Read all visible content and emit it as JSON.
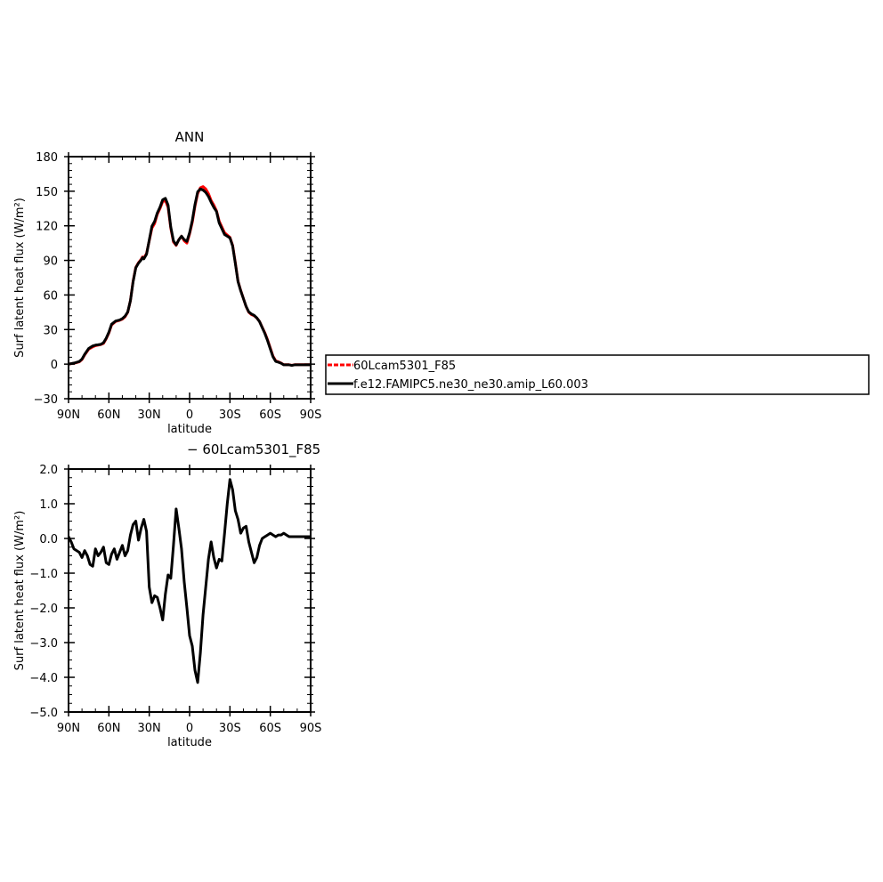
{
  "chart_data": [
    {
      "type": "line",
      "title": "ANN",
      "xlabel": "latitude",
      "ylabel": "Surf latent heat flux (W/m²)",
      "ylim": [
        -30,
        180
      ],
      "yticks": [
        -30,
        0,
        30,
        60,
        90,
        120,
        150,
        180
      ],
      "ytick_labels": [
        "−30",
        "0",
        "30",
        "60",
        "90",
        "120",
        "150",
        "180"
      ],
      "xlim": [
        90,
        -90
      ],
      "xticks": [
        90,
        60,
        30,
        0,
        -30,
        -60,
        -90
      ],
      "xtick_labels": [
        "90N",
        "60N",
        "30N",
        "0",
        "30S",
        "60S",
        "90S"
      ],
      "legend_position": "right",
      "series": [
        {
          "name": "60Lcam5301_F85",
          "color": "#ff0000",
          "x": [
            90,
            85,
            82,
            80,
            78,
            75,
            72,
            70,
            68,
            66,
            64,
            62,
            60,
            58,
            55,
            52,
            50,
            48,
            46,
            44,
            42,
            40,
            38,
            36,
            35,
            34,
            32,
            30,
            28,
            26,
            24,
            22,
            20,
            18,
            16,
            14,
            12,
            10,
            8,
            6,
            4,
            2,
            0,
            -2,
            -4,
            -6,
            -8,
            -10,
            -12,
            -14,
            -16,
            -18,
            -20,
            -22,
            -24,
            -26,
            -28,
            -30,
            -32,
            -34,
            -36,
            -38,
            -40,
            -42,
            -44,
            -46,
            -48,
            -50,
            -52,
            -54,
            -56,
            -58,
            -60,
            -62,
            -64,
            -66,
            -68,
            -70,
            -72,
            -74,
            -76,
            -78,
            -80,
            -82,
            -85,
            -90
          ],
          "values": [
            0,
            1,
            2,
            4,
            8,
            13,
            15,
            16,
            16.5,
            17,
            18,
            22,
            27,
            34,
            37,
            38,
            39,
            41,
            45,
            55,
            72,
            84,
            88,
            91,
            93,
            92,
            96,
            107,
            118,
            122,
            130,
            135,
            141,
            142,
            136,
            118,
            106,
            103,
            108,
            111,
            107,
            105,
            113,
            123,
            137,
            148,
            153,
            154,
            152,
            148,
            142,
            138,
            133,
            124,
            119,
            114,
            112,
            110,
            103,
            88,
            72,
            64,
            57,
            50,
            45,
            43,
            42,
            40,
            37,
            32,
            27,
            21,
            14,
            7,
            3,
            2,
            1,
            -0.5,
            -0.5,
            -0.5,
            -1,
            -0.5,
            -0.5,
            -0.5,
            -0.5,
            -0.5
          ]
        },
        {
          "name": "f.e12.FAMIPC5.ne30_ne30.amip_L60.003",
          "color": "#000000",
          "x": [
            90,
            85,
            82,
            80,
            78,
            75,
            72,
            70,
            68,
            66,
            64,
            62,
            60,
            58,
            55,
            52,
            50,
            48,
            46,
            44,
            42,
            40,
            38,
            36,
            35,
            34,
            32,
            30,
            28,
            26,
            24,
            22,
            20,
            18,
            16,
            14,
            12,
            10,
            8,
            6,
            4,
            2,
            0,
            -2,
            -4,
            -6,
            -8,
            -10,
            -12,
            -14,
            -16,
            -18,
            -20,
            -22,
            -24,
            -26,
            -28,
            -30,
            -32,
            -34,
            -36,
            -38,
            -40,
            -42,
            -44,
            -46,
            -48,
            -50,
            -52,
            -54,
            -56,
            -58,
            -60,
            -62,
            -64,
            -66,
            -68,
            -70,
            -72,
            -74,
            -76,
            -78,
            -80,
            -82,
            -85,
            -90
          ],
          "values": [
            0,
            1.2,
            2.3,
            4.4,
            8.5,
            13.6,
            15.8,
            16.5,
            16.8,
            17.2,
            18.6,
            22.5,
            27.7,
            34.6,
            37.4,
            38.3,
            39.5,
            41.6,
            45.2,
            55,
            71.5,
            83.6,
            87.6,
            90.4,
            92.4,
            91.3,
            95.4,
            107.6,
            119.7,
            123.8,
            131.2,
            136.2,
            142.6,
            143.9,
            138,
            119,
            107,
            103.5,
            107.8,
            111,
            108,
            106.5,
            114,
            124.5,
            138.5,
            149.5,
            152,
            151,
            149,
            145.5,
            140.5,
            136,
            132.5,
            122.5,
            117.5,
            112.5,
            111,
            109.5,
            102.5,
            87.4,
            71.6,
            63.7,
            56.9,
            50.1,
            45.3,
            43.5,
            42.3,
            40.1,
            36.9,
            31.7,
            26.5,
            20.3,
            13.2,
            6.4,
            2.4,
            1.7,
            0.8,
            -0.6,
            -0.6,
            -0.6,
            -1.1,
            -0.6,
            -0.6,
            -0.6,
            -0.6,
            -0.6
          ]
        }
      ]
    },
    {
      "type": "line",
      "title": "− 60Lcam5301_F85",
      "xlabel": "latitude",
      "ylabel": "Surf latent heat flux (W/m²)",
      "ylim": [
        -5,
        2
      ],
      "yticks": [
        -5,
        -4,
        -3,
        -2,
        -1,
        0,
        1,
        2
      ],
      "ytick_labels": [
        "−5.0",
        "−4.0",
        "−3.0",
        "−2.0",
        "−1.0",
        "0.0",
        "1.0",
        "2.0"
      ],
      "xlim": [
        90,
        -90
      ],
      "xticks": [
        90,
        60,
        30,
        0,
        -30,
        -60,
        -90
      ],
      "xtick_labels": [
        "90N",
        "60N",
        "30N",
        "0",
        "30S",
        "60S",
        "90S"
      ],
      "series": [
        {
          "color": "#000000",
          "x": [
            90,
            88,
            86,
            84,
            82,
            80,
            78,
            76,
            74,
            72,
            70,
            68,
            66,
            64,
            62,
            60,
            58,
            56,
            54,
            52,
            50,
            48,
            46,
            44,
            42,
            40,
            38,
            36,
            34,
            32,
            30,
            28,
            26,
            24,
            22,
            20,
            18,
            16,
            14,
            12,
            10,
            8,
            6,
            4,
            2,
            0,
            -2,
            -4,
            -6,
            -8,
            -10,
            -12,
            -14,
            -16,
            -18,
            -20,
            -22,
            -24,
            -26,
            -28,
            -30,
            -32,
            -34,
            -36,
            -38,
            -40,
            -42,
            -44,
            -46,
            -48,
            -50,
            -52,
            -54,
            -56,
            -58,
            -60,
            -62,
            -64,
            -66,
            -68,
            -70,
            -72,
            -74,
            -76,
            -78,
            -80,
            -82,
            -84,
            -86,
            -88,
            -90
          ],
          "values": [
            0.05,
            -0.1,
            -0.3,
            -0.35,
            -0.4,
            -0.55,
            -0.35,
            -0.5,
            -0.75,
            -0.8,
            -0.3,
            -0.5,
            -0.4,
            -0.25,
            -0.7,
            -0.75,
            -0.45,
            -0.3,
            -0.6,
            -0.4,
            -0.2,
            -0.5,
            -0.35,
            0.1,
            0.4,
            0.5,
            -0.05,
            0.3,
            0.55,
            0.2,
            -1.4,
            -1.85,
            -1.65,
            -1.7,
            -2.0,
            -2.35,
            -1.6,
            -1.05,
            -1.15,
            -0.2,
            0.85,
            0.3,
            -0.3,
            -1.25,
            -2.0,
            -2.8,
            -3.1,
            -3.8,
            -4.15,
            -3.3,
            -2.2,
            -1.4,
            -0.6,
            -0.1,
            -0.55,
            -0.85,
            -0.6,
            -0.65,
            0.15,
            1.0,
            1.7,
            1.4,
            0.8,
            0.55,
            0.15,
            0.3,
            0.35,
            -0.1,
            -0.4,
            -0.7,
            -0.55,
            -0.2,
            0.0,
            0.05,
            0.1,
            0.15,
            0.1,
            0.05,
            0.1,
            0.1,
            0.15,
            0.1,
            0.05,
            0.05,
            0.05,
            0.05,
            0.05,
            0.05,
            0.05,
            0.05,
            0.05
          ]
        }
      ]
    }
  ]
}
